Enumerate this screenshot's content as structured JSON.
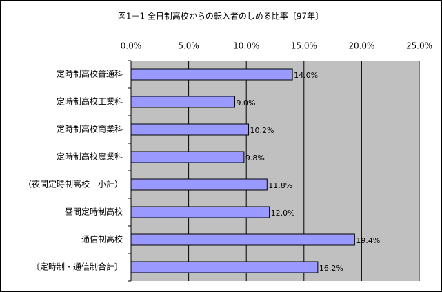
{
  "chart_data": {
    "type": "bar",
    "orientation": "horizontal",
    "title": "図1－1 全日制高校からの転入者のしめる比率〔97年〕",
    "categories": [
      "定時制高校普通科",
      "定時制高校工業科",
      "定時制高校商業科",
      "定時制高校農業科",
      "（夜間定時制高校　小計）",
      "昼間定時制高校",
      "通信制高校",
      "〔定時制・通信制合計〕"
    ],
    "values": [
      14.0,
      9.0,
      10.2,
      9.8,
      11.8,
      12.0,
      19.4,
      16.2
    ],
    "value_labels": [
      "14.0%",
      "9.0%",
      "10.2%",
      "9.8%",
      "11.8%",
      "12.0%",
      "19.4%",
      "16.2%"
    ],
    "color": "#9999ff",
    "xlim": [
      0,
      25
    ],
    "xticks": [
      {
        "value": 0,
        "label": "0.0%"
      },
      {
        "value": 5,
        "label": "5.0%"
      },
      {
        "value": 10,
        "label": "10.0%"
      },
      {
        "value": 15,
        "label": "15.0%"
      },
      {
        "value": 20,
        "label": "20.0%"
      },
      {
        "value": 25,
        "label": "25.0%"
      }
    ],
    "grid": true
  }
}
